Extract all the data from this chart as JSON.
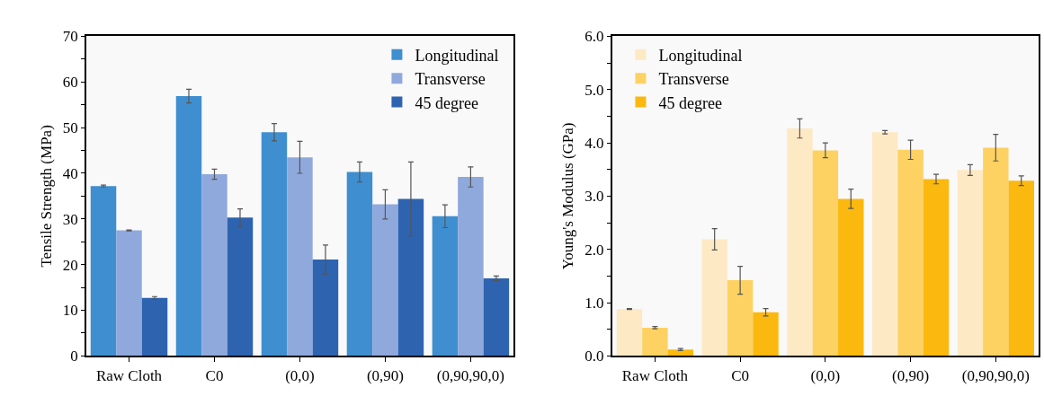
{
  "chart_data": [
    {
      "type": "bar",
      "ylabel": "Tensile Strength (MPa)",
      "categories": [
        "Raw Cloth",
        "C0",
        "(0,0)",
        "(0,90)",
        "(0,90,90,0)"
      ],
      "ylim": [
        0,
        70
      ],
      "yticks": [
        0,
        {
          "value": 5,
          "label": null
        },
        10,
        {
          "value": 15,
          "label": null
        },
        20,
        {
          "value": 25,
          "label": null
        },
        30,
        {
          "value": 35,
          "label": null
        },
        40,
        {
          "value": 45,
          "label": null
        },
        50,
        {
          "value": 55,
          "label": null
        },
        60,
        {
          "value": 65,
          "label": null
        },
        70
      ],
      "legend": "top right",
      "grid": false,
      "series": [
        {
          "name": "Longitudinal",
          "color": "#3f8fd0",
          "values": [
            37.2,
            56.9,
            49.0,
            40.3,
            30.6
          ],
          "errors": [
            0.2,
            1.5,
            1.9,
            2.2,
            2.5
          ]
        },
        {
          "name": "Transverse",
          "color": "#8fa9dc",
          "values": [
            27.5,
            39.8,
            43.5,
            33.2,
            39.2
          ],
          "errors": [
            0.1,
            1.1,
            3.5,
            3.2,
            2.2
          ]
        },
        {
          "name": "45 degree",
          "color": "#2e63b0",
          "values": [
            12.7,
            30.3,
            21.1,
            34.4,
            17.0
          ],
          "errors": [
            0.3,
            1.9,
            3.2,
            8.1,
            0.5
          ]
        }
      ]
    },
    {
      "type": "bar",
      "ylabel": "Young's Modulus (GPa)",
      "categories": [
        "Raw Cloth",
        "C0",
        "(0,0)",
        "(0,90)",
        "(0,90,90,0)"
      ],
      "ylim": [
        0,
        6
      ],
      "yticks": [
        {
          "value": 0,
          "label": "0.0"
        },
        {
          "value": 0.5,
          "label": null
        },
        {
          "value": 1,
          "label": "1.0"
        },
        {
          "value": 1.5,
          "label": null
        },
        {
          "value": 2,
          "label": "2.0"
        },
        {
          "value": 2.5,
          "label": null
        },
        {
          "value": 3,
          "label": "3.0"
        },
        {
          "value": 3.5,
          "label": null
        },
        {
          "value": 4,
          "label": "4.0"
        },
        {
          "value": 4.5,
          "label": null
        },
        {
          "value": 5,
          "label": "5.0"
        },
        {
          "value": 5.5,
          "label": null
        },
        {
          "value": 6,
          "label": "6.0"
        }
      ],
      "legend": "top left",
      "grid": false,
      "series": [
        {
          "name": "Longitudinal",
          "color": "#fde9c4",
          "values": [
            0.88,
            2.19,
            4.27,
            4.2,
            3.49
          ],
          "errors": [
            0.01,
            0.2,
            0.18,
            0.03,
            0.1
          ]
        },
        {
          "name": "Transverse",
          "color": "#fdd262",
          "values": [
            0.53,
            1.42,
            3.86,
            3.87,
            3.91
          ],
          "errors": [
            0.02,
            0.26,
            0.14,
            0.18,
            0.25
          ]
        },
        {
          "name": "45 degree",
          "color": "#fbb80f",
          "values": [
            0.12,
            0.82,
            2.95,
            3.32,
            3.29
          ],
          "errors": [
            0.02,
            0.07,
            0.18,
            0.09,
            0.09
          ]
        }
      ]
    }
  ]
}
